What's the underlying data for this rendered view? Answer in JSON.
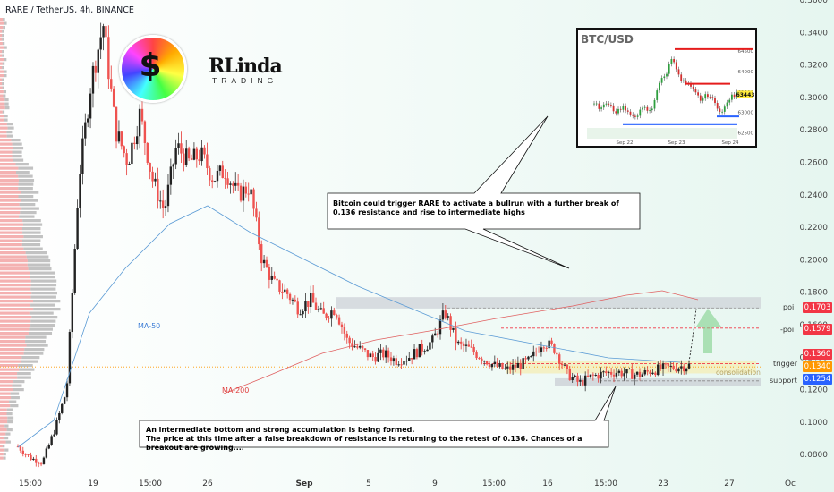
{
  "header": {
    "symbol_line": "RARE / TetherUS, 4h, BINANCE"
  },
  "logo": {
    "brand": "RLinda",
    "sub": "TRADING",
    "coin_glyph": "$"
  },
  "chart_data": {
    "type": "candlestick",
    "title": "RARE / TetherUS, 4h, BINANCE",
    "y_ticks": [
      "0.3600",
      "0.3400",
      "0.3200",
      "0.3000",
      "0.2800",
      "0.2600",
      "0.2400",
      "0.2200",
      "0.2000",
      "0.1800",
      "0.1600",
      "0.1400",
      "0.1200",
      "0.1000",
      "0.0800"
    ],
    "ylim": [
      0.068,
      0.36
    ],
    "x_ticks": [
      "15:00",
      "19",
      "15:00",
      "26",
      "Sep",
      "5",
      "9",
      "15:00",
      "16",
      "15:00",
      "23",
      "27",
      "Oc"
    ],
    "price_path": [
      0.085,
      0.078,
      0.075,
      0.095,
      0.12,
      0.25,
      0.31,
      0.345,
      0.28,
      0.26,
      0.29,
      0.25,
      0.23,
      0.27,
      0.26,
      0.265,
      0.25,
      0.255,
      0.24,
      0.245,
      0.2,
      0.185,
      0.18,
      0.17,
      0.175,
      0.165,
      0.17,
      0.15,
      0.145,
      0.14,
      0.142,
      0.138,
      0.14,
      0.145,
      0.15,
      0.168,
      0.148,
      0.145,
      0.14,
      0.135,
      0.132,
      0.135,
      0.138,
      0.15,
      0.145,
      0.13,
      0.124,
      0.128,
      0.13,
      0.131,
      0.13,
      0.129,
      0.132,
      0.133,
      0.134,
      0.135
    ],
    "indicators": [
      {
        "name": "MA-50",
        "color": "#5b9bd5"
      },
      {
        "name": "MA-200",
        "color": "#e06060"
      }
    ],
    "levels": [
      {
        "label": "poi",
        "value": 0.1703,
        "color": "#f23645"
      },
      {
        "label": "-poi",
        "value": 0.1579,
        "color": "#f23645"
      },
      {
        "label": "trigger",
        "value": 0.136,
        "color": "#f23645"
      },
      {
        "label": "",
        "value": 0.134,
        "color": "#ff9800"
      },
      {
        "label": "support",
        "value": 0.1254,
        "color": "#2962ff"
      }
    ],
    "zone_label": "consolidation",
    "annotations": [
      "Bitcoin could trigger RARE to activate a bullrun with a further break of 0.136 resistance and rise to intermediate highs",
      "An intermediate bottom and strong accumulation is being formed.",
      "The price at this time after a false breakdown of resistance is returning to the retest of 0.136. Chances of a breakout are growing...."
    ],
    "inset": {
      "title": "BTC/USD",
      "y_ticks": [
        "64500",
        "64000",
        "63500",
        "63000",
        "62500"
      ],
      "last_price": "63443",
      "x_ticks": [
        "Sep 22",
        "Sep 23",
        "Sep 24"
      ],
      "path": [
        63200,
        63100,
        63250,
        63000,
        63150,
        62900,
        62950,
        63100,
        63000,
        63700,
        63900,
        64400,
        63800,
        63700,
        63500,
        63300,
        63450,
        63200,
        63000,
        63350,
        63443
      ]
    }
  }
}
